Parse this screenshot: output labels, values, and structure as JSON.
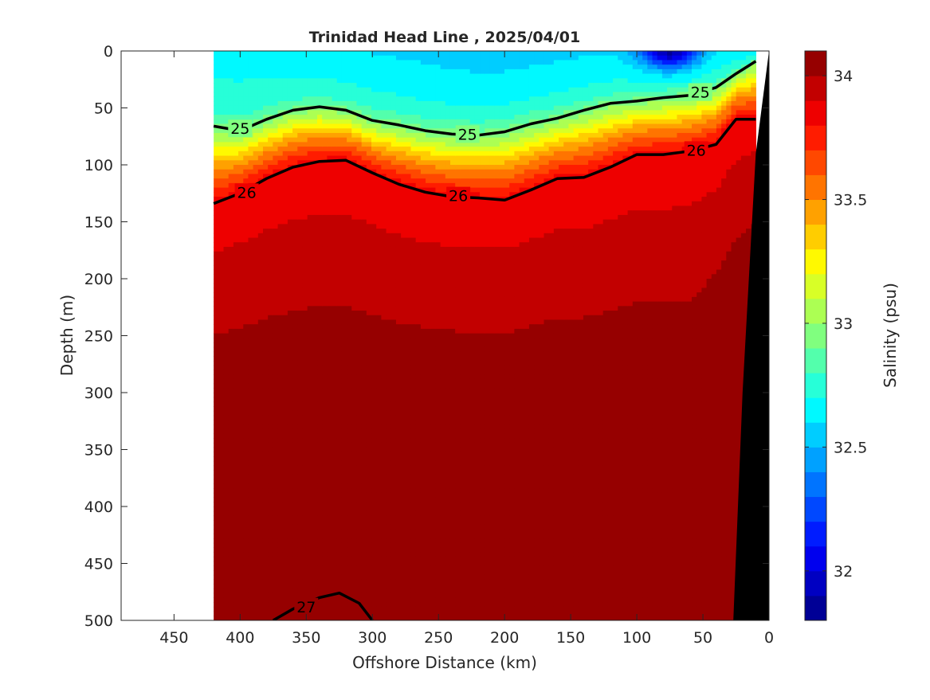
{
  "chart_data": {
    "type": "heatmap",
    "title": "Trinidad Head Line , 2025/04/01",
    "xlabel": "Offshore Distance (km)",
    "ylabel": "Depth (m)",
    "xlim": [
      490,
      0
    ],
    "ylim": [
      0,
      500
    ],
    "x_reversed": true,
    "y_reversed": true,
    "x_ticks": [
      450,
      400,
      350,
      300,
      250,
      200,
      150,
      100,
      50,
      0
    ],
    "y_ticks": [
      0,
      50,
      100,
      150,
      200,
      250,
      300,
      350,
      400,
      450,
      500
    ],
    "colorbar": {
      "label": "Salinity (psu)",
      "range": [
        31.8,
        34.1
      ],
      "ticks": [
        32,
        32.5,
        33,
        33.5,
        34
      ],
      "levels": [
        31.8,
        31.9,
        32.0,
        32.1,
        32.2,
        32.3,
        32.4,
        32.5,
        32.6,
        32.7,
        32.8,
        32.9,
        33.0,
        33.1,
        33.2,
        33.3,
        33.4,
        33.5,
        33.6,
        33.7,
        33.8,
        33.9,
        34.0,
        34.1
      ],
      "colormap": "jet"
    },
    "data_x_range": [
      420,
      10
    ],
    "salinity_profile_offshore": [
      {
        "depth": 0,
        "salinity": 32.65
      },
      {
        "depth": 50,
        "salinity": 32.75
      },
      {
        "depth": 75,
        "salinity": 33.05
      },
      {
        "depth": 100,
        "salinity": 33.45
      },
      {
        "depth": 130,
        "salinity": 33.8
      },
      {
        "depth": 200,
        "salinity": 33.95
      },
      {
        "depth": 300,
        "salinity": 34.05
      },
      {
        "depth": 500,
        "salinity": 34.1
      }
    ],
    "density_contours": [
      {
        "label": "25",
        "emphasis": "bold",
        "points": [
          [
            420,
            66
          ],
          [
            400,
            70
          ],
          [
            380,
            60
          ],
          [
            360,
            52
          ],
          [
            340,
            49
          ],
          [
            320,
            52
          ],
          [
            300,
            61
          ],
          [
            280,
            65
          ],
          [
            260,
            70
          ],
          [
            240,
            73
          ],
          [
            220,
            74
          ],
          [
            200,
            71
          ],
          [
            180,
            64
          ],
          [
            160,
            59
          ],
          [
            140,
            52
          ],
          [
            120,
            46
          ],
          [
            100,
            44
          ],
          [
            80,
            41
          ],
          [
            60,
            39
          ],
          [
            40,
            32
          ],
          [
            25,
            20
          ],
          [
            10,
            9
          ]
        ]
      },
      {
        "label": "26",
        "emphasis": "bold",
        "points": [
          [
            420,
            134
          ],
          [
            400,
            125
          ],
          [
            380,
            112
          ],
          [
            360,
            102
          ],
          [
            340,
            97
          ],
          [
            320,
            96
          ],
          [
            300,
            107
          ],
          [
            280,
            117
          ],
          [
            260,
            124
          ],
          [
            240,
            128
          ],
          [
            220,
            129
          ],
          [
            200,
            131
          ],
          [
            180,
            122
          ],
          [
            160,
            112
          ],
          [
            140,
            111
          ],
          [
            120,
            102
          ],
          [
            100,
            91
          ],
          [
            80,
            91
          ],
          [
            60,
            88
          ],
          [
            40,
            82
          ],
          [
            25,
            60
          ],
          [
            10,
            60
          ]
        ]
      },
      {
        "label": "27",
        "emphasis": "bold",
        "points": [
          [
            375,
            500
          ],
          [
            360,
            490
          ],
          [
            340,
            480
          ],
          [
            325,
            476
          ],
          [
            310,
            485
          ],
          [
            300,
            500
          ]
        ]
      }
    ],
    "contour_labels": [
      {
        "text": "25",
        "x": 400,
        "depth": 68
      },
      {
        "text": "25",
        "x": 228,
        "depth": 73
      },
      {
        "text": "25",
        "x": 52,
        "depth": 36
      },
      {
        "text": "26",
        "x": 395,
        "depth": 124
      },
      {
        "text": "26",
        "x": 235,
        "depth": 127
      },
      {
        "text": "26",
        "x": 55,
        "depth": 87
      },
      {
        "text": "27",
        "x": 350,
        "depth": 488
      }
    ],
    "bathymetry": {
      "fill": "#000000",
      "points": [
        [
          0,
          0
        ],
        [
          0,
          500
        ],
        [
          27,
          500
        ],
        [
          20,
          300
        ],
        [
          10,
          90
        ],
        [
          0,
          0
        ]
      ]
    },
    "colors": {
      "background": "#ffffff",
      "axes": "#262626",
      "terrain": "#000000"
    }
  }
}
